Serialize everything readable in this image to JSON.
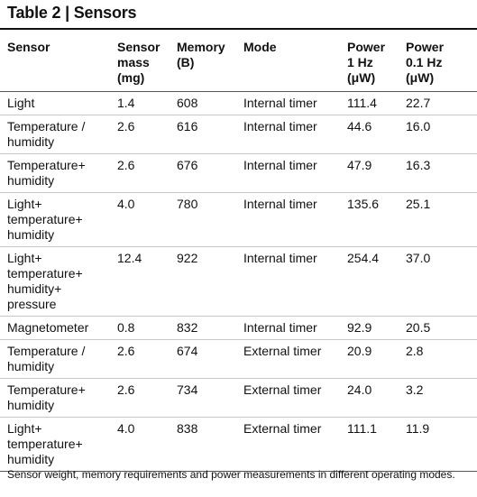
{
  "title": "Table 2 | Sensors",
  "headers": {
    "sensor": "Sensor",
    "mass": "Sensor\nmass\n(mg)",
    "memory": "Memory\n(B)",
    "mode": "Mode",
    "power_1hz": "Power\n1 Hz\n(μW)",
    "power_01hz": "Power\n0.1 Hz\n(μW)"
  },
  "rows": [
    {
      "sensor": "Light",
      "mass": "1.4",
      "memory": "608",
      "mode": "Internal timer",
      "power_1hz": "111.4",
      "power_01hz": "22.7"
    },
    {
      "sensor": "Temperature /\nhumidity",
      "mass": "2.6",
      "memory": "616",
      "mode": "Internal timer",
      "power_1hz": "44.6",
      "power_01hz": "16.0"
    },
    {
      "sensor": "Temperature+\nhumidity",
      "mass": "2.6",
      "memory": "676",
      "mode": "Internal timer",
      "power_1hz": "47.9",
      "power_01hz": "16.3"
    },
    {
      "sensor": "Light+\ntemperature+\nhumidity",
      "mass": "4.0",
      "memory": "780",
      "mode": "Internal timer",
      "power_1hz": "135.6",
      "power_01hz": "25.1"
    },
    {
      "sensor": "Light+\ntemperature+\nhumidity+\npressure",
      "mass": "12.4",
      "memory": "922",
      "mode": "Internal timer",
      "power_1hz": "254.4",
      "power_01hz": "37.0"
    },
    {
      "sensor": "Magnetometer",
      "mass": "0.8",
      "memory": "832",
      "mode": "Internal timer",
      "power_1hz": "92.9",
      "power_01hz": "20.5"
    },
    {
      "sensor": "Temperature /\nhumidity",
      "mass": "2.6",
      "memory": "674",
      "mode": "External timer",
      "power_1hz": "20.9",
      "power_01hz": "2.8"
    },
    {
      "sensor": "Temperature+\nhumidity",
      "mass": "2.6",
      "memory": "734",
      "mode": "External timer",
      "power_1hz": "24.0",
      "power_01hz": "3.2"
    },
    {
      "sensor": "Light+\ntemperature+\nhumidity",
      "mass": "4.0",
      "memory": "838",
      "mode": "External timer",
      "power_1hz": "111.1",
      "power_01hz": "11.9"
    }
  ],
  "footnote": "Sensor weight, memory requirements and power measurements in different operating modes."
}
